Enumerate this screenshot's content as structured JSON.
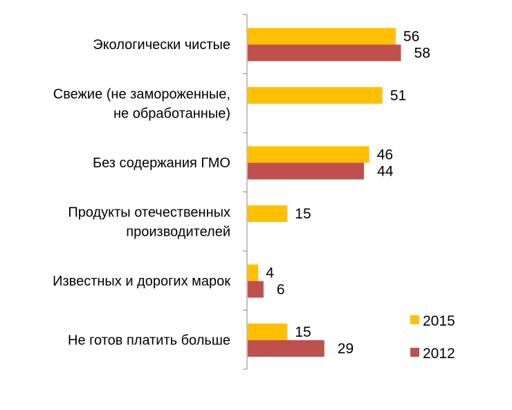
{
  "chart_data": {
    "type": "bar",
    "orientation": "horizontal",
    "categories": [
      [
        "Экологически чистые"
      ],
      [
        "Свежие (не замороженные,",
        "не обработанные)"
      ],
      [
        "Без содержания ГМО"
      ],
      [
        "Продукты отечественных",
        "производителей"
      ],
      [
        "Известных и дорогих марок"
      ],
      [
        "Не готов платить больше"
      ]
    ],
    "series": [
      {
        "name": "2015",
        "color": "#FFC000",
        "values": [
          56,
          51,
          46,
          15,
          4,
          15
        ]
      },
      {
        "name": "2012",
        "color": "#C0504D",
        "values": [
          58,
          null,
          44,
          null,
          6,
          29
        ]
      }
    ],
    "xlim": [
      0,
      100
    ],
    "grid": false,
    "data_labels": true,
    "legend_position": "bottom-right"
  }
}
